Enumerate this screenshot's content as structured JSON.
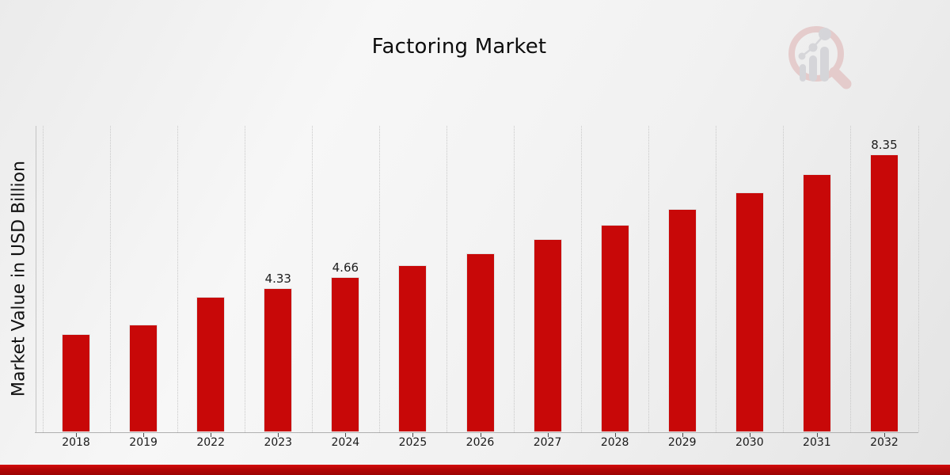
{
  "chart_data": {
    "type": "bar",
    "title": "Factoring Market",
    "ylabel": "Market Value in USD Billion",
    "xlabel": "",
    "categories": [
      "2018",
      "2019",
      "2022",
      "2023",
      "2024",
      "2025",
      "2026",
      "2027",
      "2028",
      "2029",
      "2030",
      "2031",
      "2032"
    ],
    "values": [
      2.93,
      3.22,
      4.05,
      4.33,
      4.66,
      5.01,
      5.37,
      5.79,
      6.22,
      6.7,
      7.19,
      7.74,
      8.35
    ],
    "data_labels": {
      "2023": "4.33",
      "2024": "4.66",
      "2032": "8.35"
    },
    "bar_color": "#c80808",
    "ylim": [
      0,
      9.2
    ],
    "grid": "vertical-dotted-between-categories",
    "legend_position": "none",
    "footer_bar_color": "#b20505",
    "watermark_icon": "magnifier-bar-chart-logo"
  }
}
